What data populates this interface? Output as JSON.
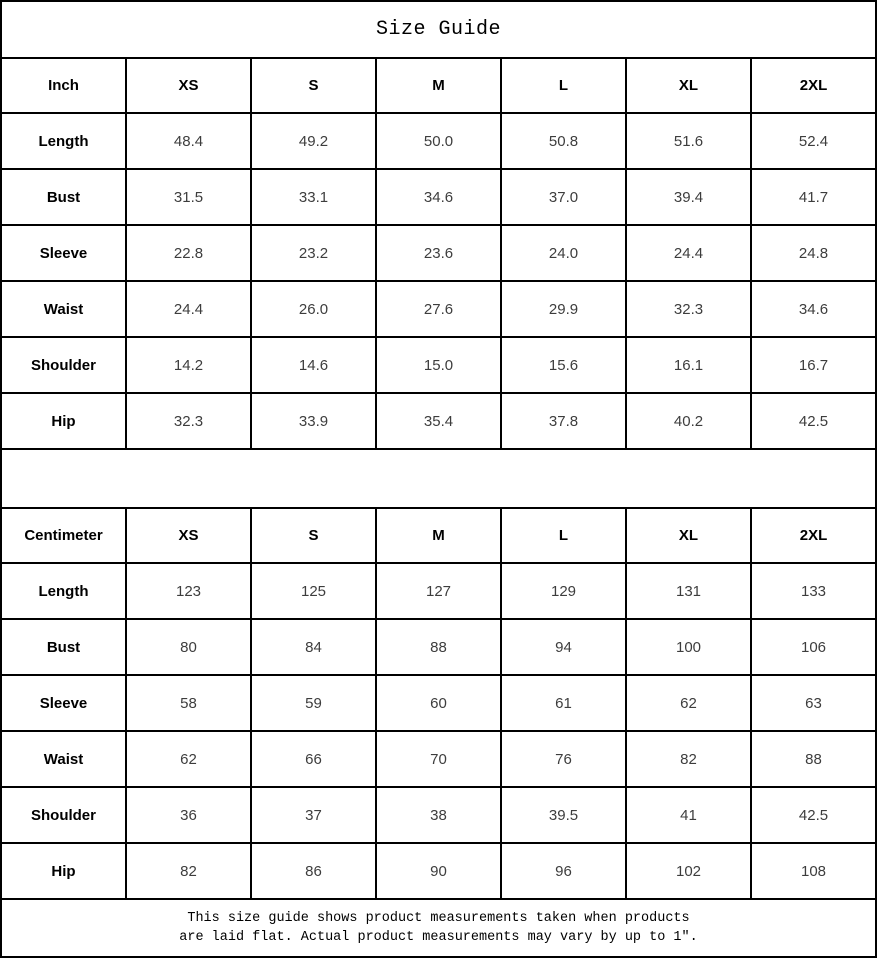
{
  "title": "Size Guide",
  "tables": [
    {
      "unit_label": "Inch",
      "sizes": [
        "XS",
        "S",
        "M",
        "L",
        "XL",
        "2XL"
      ],
      "rows": [
        {
          "label": "Length",
          "values": [
            "48.4",
            "49.2",
            "50.0",
            "50.8",
            "51.6",
            "52.4"
          ]
        },
        {
          "label": "Bust",
          "values": [
            "31.5",
            "33.1",
            "34.6",
            "37.0",
            "39.4",
            "41.7"
          ]
        },
        {
          "label": "Sleeve",
          "values": [
            "22.8",
            "23.2",
            "23.6",
            "24.0",
            "24.4",
            "24.8"
          ]
        },
        {
          "label": "Waist",
          "values": [
            "24.4",
            "26.0",
            "27.6",
            "29.9",
            "32.3",
            "34.6"
          ]
        },
        {
          "label": "Shoulder",
          "values": [
            "14.2",
            "14.6",
            "15.0",
            "15.6",
            "16.1",
            "16.7"
          ]
        },
        {
          "label": "Hip",
          "values": [
            "32.3",
            "33.9",
            "35.4",
            "37.8",
            "40.2",
            "42.5"
          ]
        }
      ]
    },
    {
      "unit_label": "Centimeter",
      "sizes": [
        "XS",
        "S",
        "M",
        "L",
        "XL",
        "2XL"
      ],
      "rows": [
        {
          "label": "Length",
          "values": [
            "123",
            "125",
            "127",
            "129",
            "131",
            "133"
          ]
        },
        {
          "label": "Bust",
          "values": [
            "80",
            "84",
            "88",
            "94",
            "100",
            "106"
          ]
        },
        {
          "label": "Sleeve",
          "values": [
            "58",
            "59",
            "60",
            "61",
            "62",
            "63"
          ]
        },
        {
          "label": "Waist",
          "values": [
            "62",
            "66",
            "70",
            "76",
            "82",
            "88"
          ]
        },
        {
          "label": "Shoulder",
          "values": [
            "36",
            "37",
            "38",
            "39.5",
            "41",
            "42.5"
          ]
        },
        {
          "label": "Hip",
          "values": [
            "82",
            "86",
            "90",
            "96",
            "102",
            "108"
          ]
        }
      ]
    }
  ],
  "footer": {
    "line1": "This size guide shows product measurements taken when products",
    "line2": "are laid flat. Actual product measurements may vary by up to 1″."
  },
  "colors": {
    "border": "#000000",
    "label_text": "#000000",
    "value_text": "#3d3d3d",
    "background": "#ffffff"
  }
}
